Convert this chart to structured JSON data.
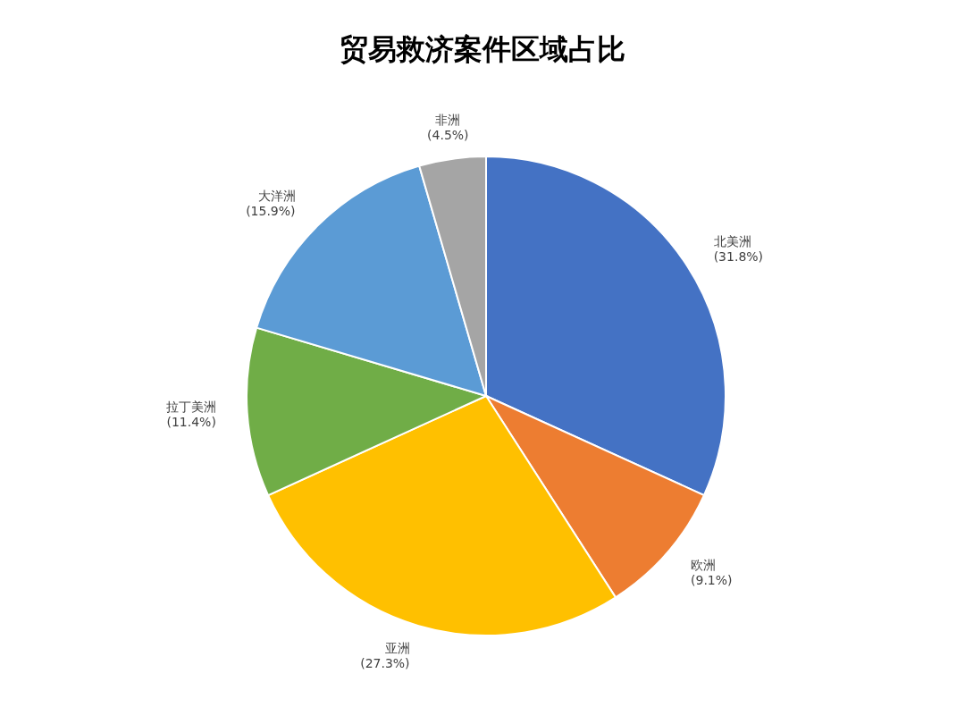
{
  "chart_data": {
    "type": "pie",
    "title": "贸易救济案件区域占比",
    "categories": [
      "北美洲",
      "欧洲",
      "亚洲",
      "拉丁美洲",
      "大洋洲",
      "非洲"
    ],
    "values": [
      31.8,
      9.1,
      27.3,
      11.4,
      15.9,
      4.5
    ],
    "colors": [
      "#4472c4",
      "#ed7d31",
      "#ffc000",
      "#70ad47",
      "#5b9bd5",
      "#a5a5a5"
    ],
    "value_labels": [
      "(31.8%)",
      "(9.1%)",
      "(27.3%)",
      "(11.4%)",
      "(15.9%)",
      "(4.5%)"
    ]
  }
}
